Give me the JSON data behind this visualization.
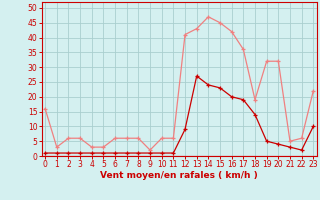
{
  "hours": [
    0,
    1,
    2,
    3,
    4,
    5,
    6,
    7,
    8,
    9,
    10,
    11,
    12,
    13,
    14,
    15,
    16,
    17,
    18,
    19,
    20,
    21,
    22,
    23
  ],
  "rafales": [
    16,
    3,
    6,
    6,
    3,
    3,
    6,
    6,
    6,
    2,
    6,
    6,
    41,
    43,
    47,
    45,
    42,
    36,
    19,
    32,
    32,
    5,
    6,
    22
  ],
  "moyen": [
    1,
    1,
    1,
    1,
    1,
    1,
    1,
    1,
    1,
    1,
    1,
    1,
    9,
    27,
    24,
    23,
    20,
    19,
    14,
    5,
    4,
    3,
    2,
    10
  ],
  "color_rafales": "#f08080",
  "color_moyen": "#cc0000",
  "bg_color": "#d4f0f0",
  "grid_color": "#aacfcf",
  "xlabel": "Vent moyen/en rafales ( km/h )",
  "ylabel_ticks": [
    0,
    5,
    10,
    15,
    20,
    25,
    30,
    35,
    40,
    45,
    50
  ],
  "ylim": [
    0,
    52
  ],
  "xlim": [
    -0.3,
    23.3
  ],
  "tick_fontsize": 5.5,
  "xlabel_fontsize": 6.5
}
